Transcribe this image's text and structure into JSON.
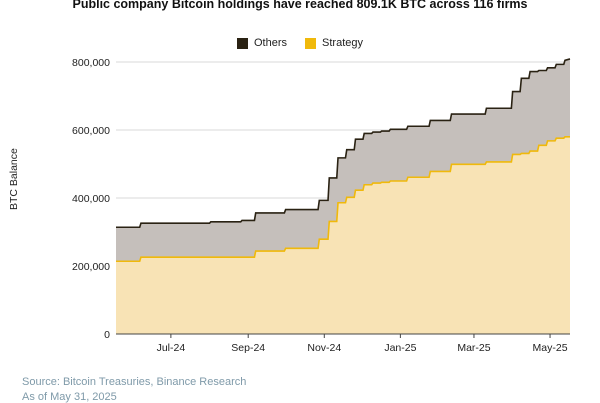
{
  "chart_data": {
    "type": "area",
    "title": "Public company Bitcoin holdings have reached 809.1K BTC across 116 firms",
    "ylabel": "BTC Balance",
    "xlabel": "",
    "ylim": [
      0,
      800000
    ],
    "yticks": [
      "0",
      "200,000",
      "400,000",
      "600,000",
      "800,000"
    ],
    "ytick_values": [
      0,
      200000,
      400000,
      600000,
      800000
    ],
    "xticks": [
      "Jul-24",
      "Sep-24",
      "Nov-24",
      "Jan-25",
      "Mar-25",
      "May-25"
    ],
    "xtick_dates": [
      "2024-07-15",
      "2024-09-15",
      "2024-11-15",
      "2025-01-15",
      "2025-03-15",
      "2025-05-15"
    ],
    "xlim": [
      "2024-06-01",
      "2025-05-31"
    ],
    "grid": true,
    "legend": [
      {
        "name": "Others",
        "color": "#2a2213"
      },
      {
        "name": "Strategy",
        "color": "#f0b90b"
      }
    ],
    "x": [
      "2024-06-01",
      "2024-06-20",
      "2024-06-21",
      "2024-07-20",
      "2024-07-21",
      "2024-08-15",
      "2024-08-16",
      "2024-09-09",
      "2024-09-10",
      "2024-09-20",
      "2024-09-21",
      "2024-10-14",
      "2024-10-15",
      "2024-11-10",
      "2024-11-11",
      "2024-11-18",
      "2024-11-19",
      "2024-11-25",
      "2024-11-26",
      "2024-12-02",
      "2024-12-03",
      "2024-12-09",
      "2024-12-10",
      "2024-12-16",
      "2024-12-17",
      "2024-12-23",
      "2024-12-24",
      "2024-12-30",
      "2024-12-31",
      "2025-01-06",
      "2025-01-07",
      "2025-01-20",
      "2025-01-21",
      "2025-02-07",
      "2025-02-08",
      "2025-02-24",
      "2025-02-25",
      "2025-03-24",
      "2025-03-25",
      "2025-04-14",
      "2025-04-15",
      "2025-04-21",
      "2025-04-22",
      "2025-04-28",
      "2025-04-29",
      "2025-05-05",
      "2025-05-06",
      "2025-05-12",
      "2025-05-13",
      "2025-05-19",
      "2025-05-20",
      "2025-05-26",
      "2025-05-27",
      "2025-05-31"
    ],
    "series": [
      {
        "name": "Strategy",
        "values": [
          214000,
          214000,
          226000,
          226000,
          226000,
          226000,
          226000,
          226000,
          226000,
          226000,
          244000,
          244000,
          252000,
          252000,
          279000,
          279000,
          331000,
          331000,
          386000,
          386000,
          402000,
          402000,
          423000,
          423000,
          439000,
          439000,
          444000,
          444000,
          446000,
          446000,
          450000,
          450000,
          461000,
          461000,
          478000,
          478000,
          499000,
          499000,
          506000,
          506000,
          528000,
          528000,
          531000,
          531000,
          538000,
          538000,
          555000,
          555000,
          568000,
          568000,
          576000,
          576000,
          580000,
          580000
        ]
      },
      {
        "name": "Others",
        "values": [
          100000,
          100000,
          100000,
          100000,
          100000,
          100000,
          104000,
          104000,
          108000,
          108000,
          112000,
          112000,
          114000,
          114000,
          114000,
          114000,
          128000,
          128000,
          132000,
          132000,
          140000,
          140000,
          150000,
          150000,
          151000,
          151000,
          150000,
          150000,
          151000,
          151000,
          152000,
          152000,
          150000,
          150000,
          150000,
          150000,
          148000,
          148000,
          158000,
          158000,
          185000,
          185000,
          221000,
          221000,
          234000,
          234000,
          220000,
          220000,
          215000,
          215000,
          217000,
          217000,
          225000,
          229000
        ]
      }
    ]
  },
  "footer": {
    "source": "Source: Bitcoin Treasuries, Binance Research",
    "asof": "As of May 31, 2025"
  }
}
